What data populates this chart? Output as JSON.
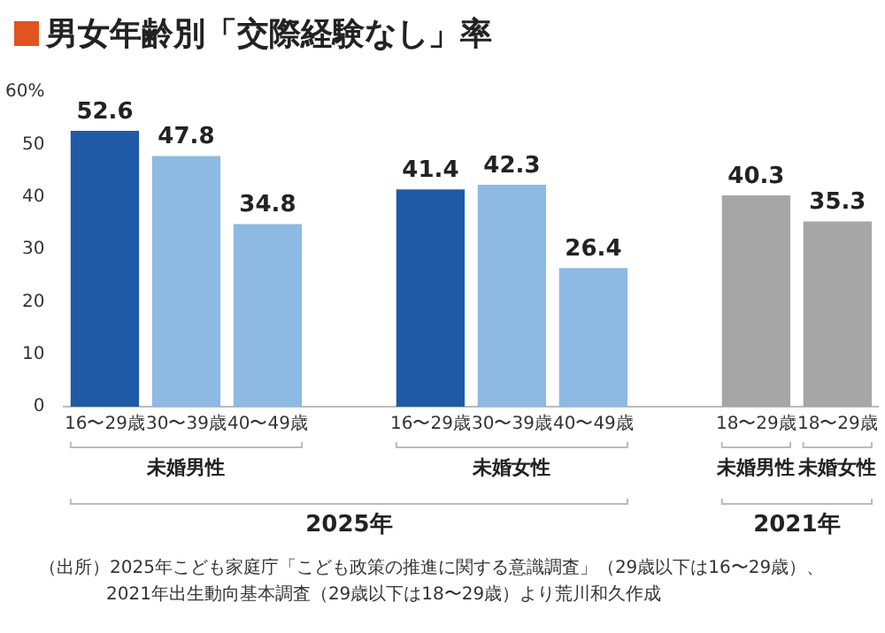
{
  "chart_data": {
    "type": "bar",
    "title": "男女年齢別「交際経験なし」率",
    "categories": [
      "16〜29歳",
      "30〜39歳",
      "40〜49歳",
      null,
      "16〜29歳",
      "30〜39歳",
      "40〜49歳",
      null,
      "18〜29歳",
      "18〜29歳"
    ],
    "values": [
      52.6,
      47.8,
      34.8,
      null,
      41.4,
      42.3,
      26.4,
      null,
      40.3,
      35.3
    ],
    "colors": [
      "#1f5aa6",
      "#8db9e2",
      "#8db9e2",
      "#ffffff",
      "#1f5aa6",
      "#8db9e2",
      "#8db9e2",
      "#ffffff",
      "#a6a6a6",
      "#a6a6a6"
    ],
    "ylim": [
      0,
      60
    ],
    "yticks": [
      0,
      10,
      20,
      30,
      40,
      50,
      {
        "value": 60,
        "label": "60%"
      }
    ],
    "grid": false,
    "legend": false,
    "data_labels": true,
    "annotations": [
      "未婚男性",
      "未婚女性",
      "未婚男性",
      "未婚女性",
      "2025年",
      "2021年",
      "（出所）2025年こども家庭庁「こども政策の推進に関する意識調査」（29歳以下は16〜29歳）、",
      "2021年出生動向基本調査（29歳以下は18〜29歳）より荒川和久作成"
    ]
  }
}
